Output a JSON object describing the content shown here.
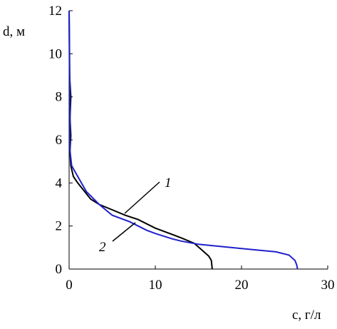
{
  "chart_data": {
    "type": "line",
    "x_label": "c, г/л",
    "y_label": "d, м",
    "xlim": [
      0,
      30
    ],
    "xticks": [
      0,
      10,
      20,
      30
    ],
    "ylim": [
      0,
      12
    ],
    "yticks": [
      0,
      2,
      4,
      6,
      8,
      10,
      12
    ],
    "series": [
      {
        "name": "1",
        "color": "#000000",
        "x": [
          16.6,
          16.5,
          16.2,
          15.5,
          14.5,
          13,
          12,
          10,
          8,
          6.5,
          5,
          3.5,
          2.5,
          2,
          1,
          0.5,
          0.2,
          0.1,
          0.2,
          0.1,
          0.2,
          0.05,
          0
        ],
        "values": [
          0,
          0.4,
          0.6,
          0.85,
          1.2,
          1.45,
          1.6,
          1.9,
          2.3,
          2.5,
          2.75,
          3.0,
          3.25,
          3.5,
          4.0,
          4.3,
          4.8,
          5.5,
          6.2,
          7,
          8,
          9,
          12
        ]
      },
      {
        "name": "2",
        "color": "#2020cc",
        "x": [
          26.5,
          26.4,
          26.2,
          25.5,
          24,
          20,
          15,
          13,
          12,
          10,
          9,
          7,
          5,
          3.5,
          2,
          1,
          0.3,
          0.1,
          0.1,
          0
        ],
        "values": [
          0,
          0.2,
          0.4,
          0.65,
          0.8,
          0.95,
          1.15,
          1.3,
          1.4,
          1.65,
          1.8,
          2.2,
          2.5,
          3.0,
          3.6,
          4.3,
          4.8,
          5.5,
          8,
          12
        ]
      }
    ]
  }
}
